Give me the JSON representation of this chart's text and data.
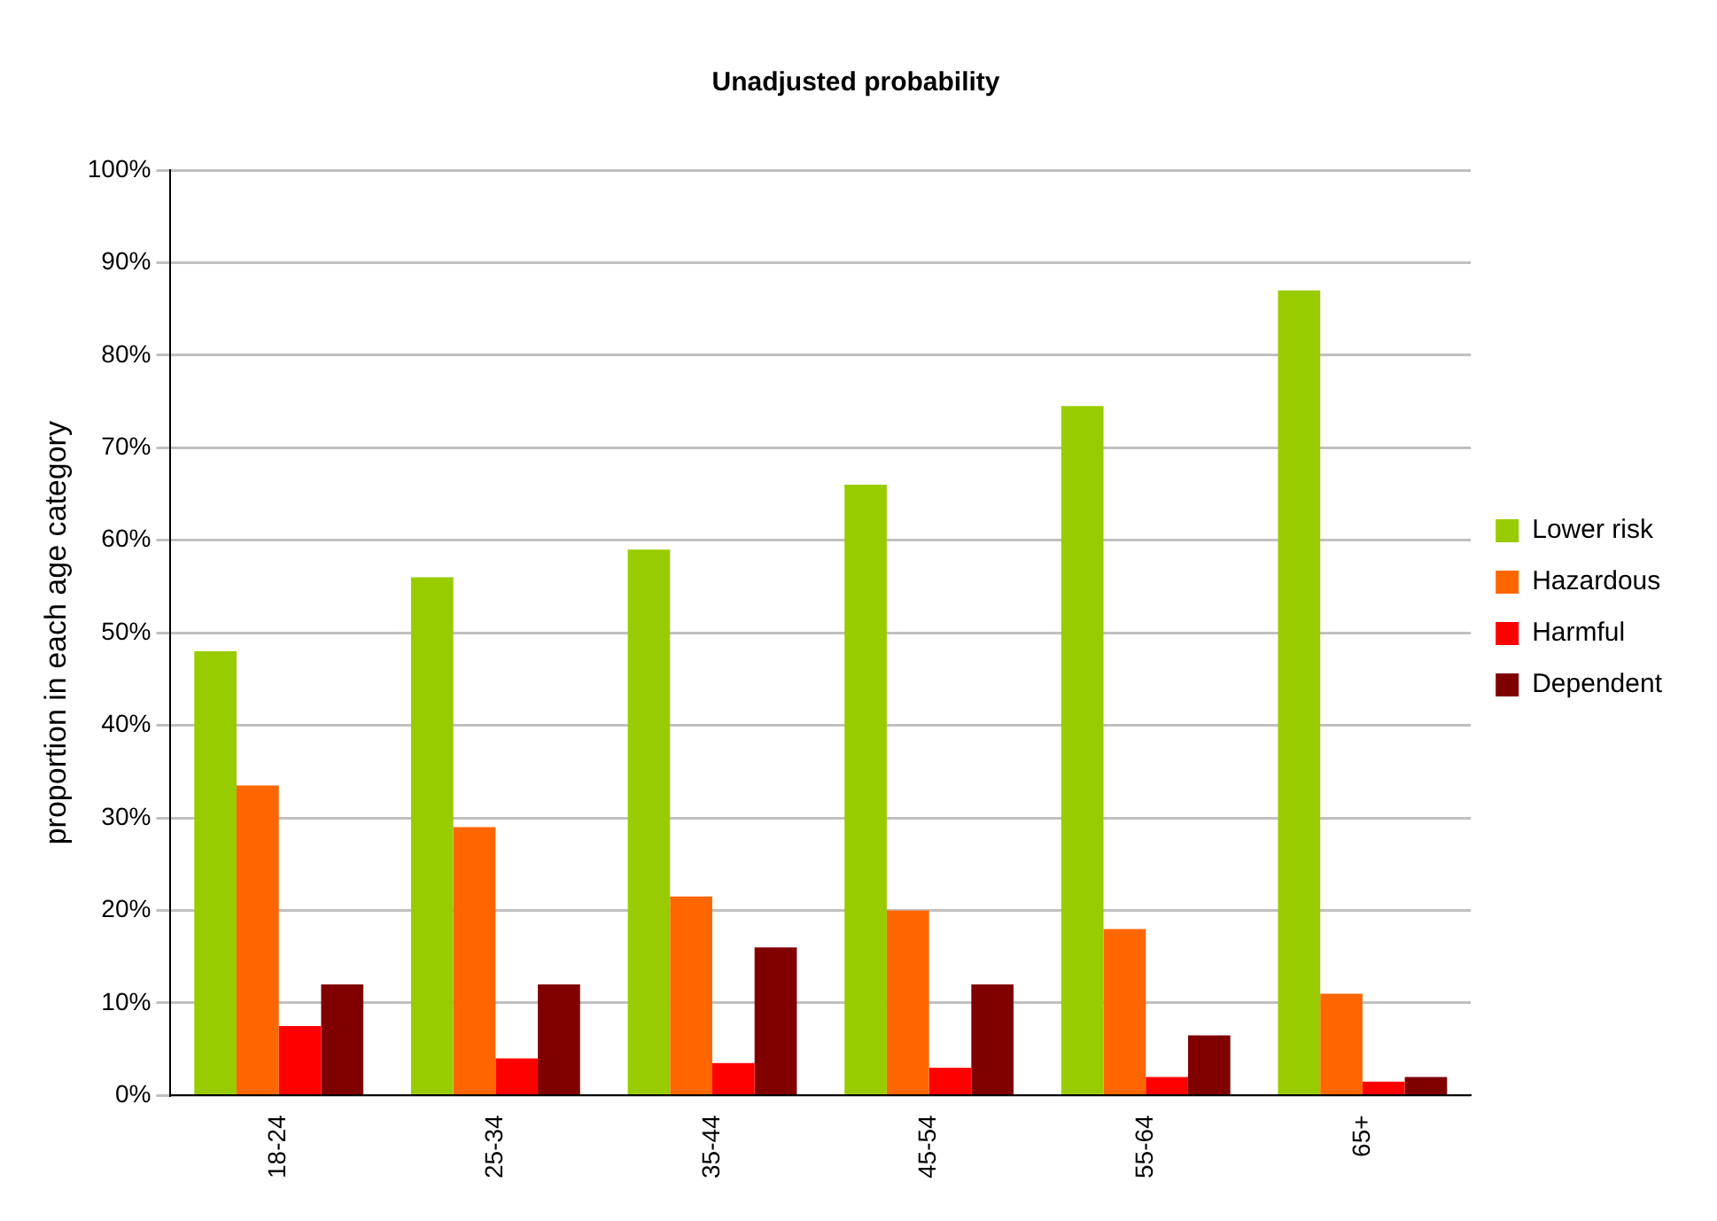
{
  "chart_data": {
    "type": "bar",
    "title": "Unadjusted probability",
    "ylabel": "proportion in each age category",
    "categories": [
      "18-24",
      "25-34",
      "35-44",
      "45-54",
      "55-64",
      "65+"
    ],
    "series": [
      {
        "name": "Lower risk",
        "color": "#99cc00",
        "values": [
          48,
          56,
          59,
          66,
          74.5,
          87
        ]
      },
      {
        "name": "Hazardous",
        "color": "#ff6600",
        "values": [
          33.5,
          29,
          21.5,
          20,
          18,
          11
        ]
      },
      {
        "name": "Harmful",
        "color": "#ff0000",
        "values": [
          7.5,
          4,
          3.5,
          3,
          2,
          1.5
        ]
      },
      {
        "name": "Dependent",
        "color": "#800000",
        "values": [
          12,
          12,
          16,
          12,
          6.5,
          2
        ]
      }
    ],
    "ylim": [
      0,
      100
    ],
    "yticks": [
      {
        "value": 0,
        "label": "0%"
      },
      {
        "value": 10,
        "label": "10%"
      },
      {
        "value": 20,
        "label": "20%"
      },
      {
        "value": 30,
        "label": "30%"
      },
      {
        "value": 40,
        "label": "40%"
      },
      {
        "value": 50,
        "label": "50%"
      },
      {
        "value": 60,
        "label": "60%"
      },
      {
        "value": 70,
        "label": "70%"
      },
      {
        "value": 80,
        "label": "80%"
      },
      {
        "value": 90,
        "label": "90%"
      },
      {
        "value": 100,
        "label": "100%"
      }
    ],
    "grid": "y",
    "legend": "right"
  }
}
